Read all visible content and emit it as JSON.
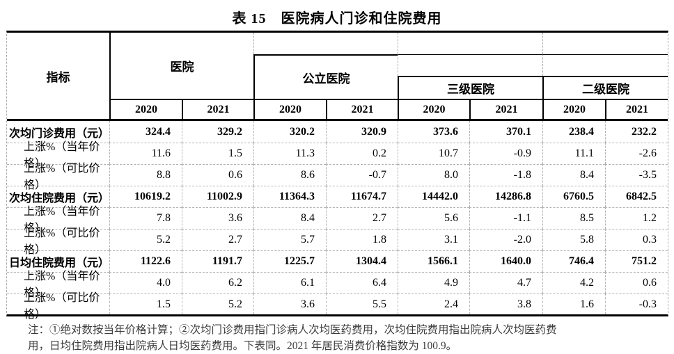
{
  "title": "表 15　医院病人门诊和住院费用",
  "table": {
    "header": {
      "indicator": "指标",
      "hospital": "医院",
      "public_hospital": "公立医院",
      "tier3_hospital": "三级医院",
      "tier2_hospital": "二级医院",
      "years": [
        "2020",
        "2021",
        "2020",
        "2021",
        "2020",
        "2021",
        "2020",
        "2021"
      ]
    },
    "rows": [
      {
        "label": "次均门诊费用（元）",
        "values": [
          "324.4",
          "329.2",
          "320.2",
          "320.9",
          "373.6",
          "370.1",
          "238.4",
          "232.2"
        ]
      },
      {
        "label": "上涨%（当年价格）",
        "values": [
          "11.6",
          "1.5",
          "11.3",
          "0.2",
          "10.7",
          "-0.9",
          "11.1",
          "-2.6"
        ]
      },
      {
        "label": "上涨%（可比价格）",
        "values": [
          "8.8",
          "0.6",
          "8.6",
          "-0.7",
          "8.0",
          "-1.8",
          "8.4",
          "-3.5"
        ]
      },
      {
        "label": "次均住院费用（元）",
        "values": [
          "10619.2",
          "11002.9",
          "11364.3",
          "11674.7",
          "14442.0",
          "14286.8",
          "6760.5",
          "6842.5"
        ]
      },
      {
        "label": "上涨%（当年价格）",
        "values": [
          "7.8",
          "3.6",
          "8.4",
          "2.7",
          "5.6",
          "-1.1",
          "8.5",
          "1.2"
        ]
      },
      {
        "label": "上涨%（可比价格）",
        "values": [
          "5.2",
          "2.7",
          "5.7",
          "1.8",
          "3.1",
          "-2.0",
          "5.8",
          "0.3"
        ]
      },
      {
        "label": "日均住院费用（元）",
        "values": [
          "1122.6",
          "1191.7",
          "1225.7",
          "1304.4",
          "1566.1",
          "1640.0",
          "746.4",
          "751.2"
        ]
      },
      {
        "label": "上涨%（当年价格）",
        "values": [
          "4.0",
          "6.2",
          "6.1",
          "6.4",
          "4.9",
          "4.7",
          "4.2",
          "0.6"
        ]
      },
      {
        "label": "上涨%（可比价格）",
        "values": [
          "1.5",
          "5.2",
          "3.6",
          "5.5",
          "2.4",
          "3.8",
          "1.6",
          "-0.3"
        ]
      }
    ]
  },
  "note": {
    "line1": "注：①绝对数按当年价格计算；②次均门诊费用指门诊病人次均医药费用，次均住院费用指出院病人次均医药费",
    "line2": "用，日均住院费用指出院病人日均医药费用。下表同。2021 年居民消费价格指数为 100.9。"
  }
}
